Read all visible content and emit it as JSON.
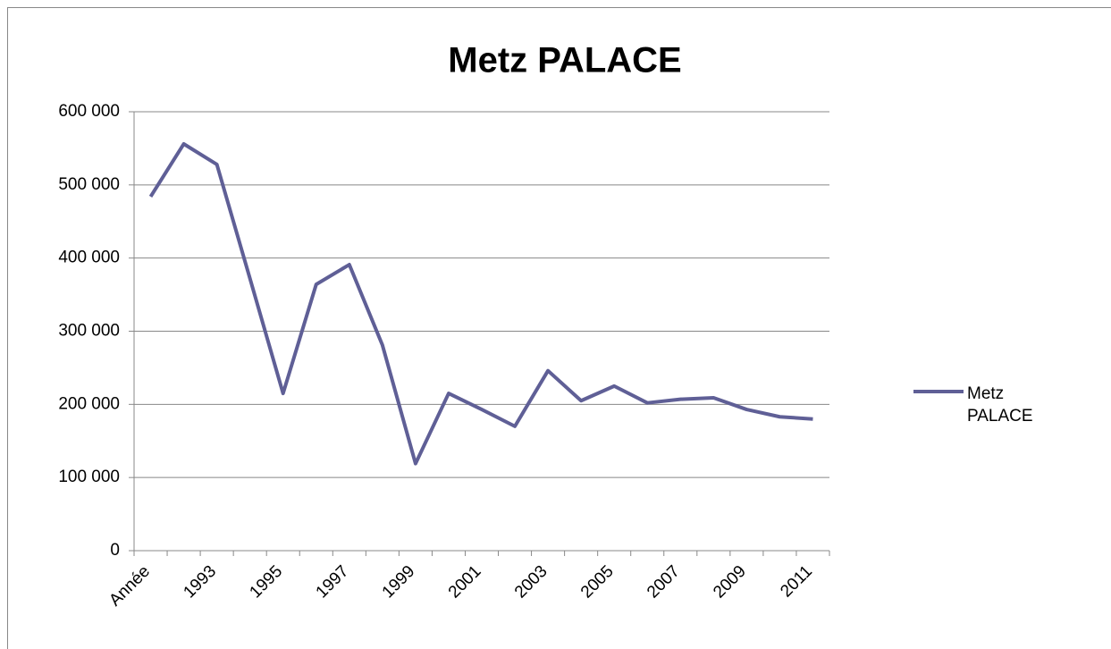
{
  "chart_data": {
    "type": "line",
    "title": "Metz PALACE",
    "categories": [
      "Année",
      null,
      "1993",
      null,
      "1995",
      null,
      "1997",
      null,
      "1999",
      null,
      "2001",
      null,
      "2003",
      null,
      "2005",
      null,
      "2007",
      null,
      "2009",
      null,
      "2011"
    ],
    "series": [
      {
        "name": "Metz PALACE",
        "color": "#5f5f96",
        "values": [
          484000,
          556000,
          528000,
          372000,
          215000,
          364000,
          391000,
          281000,
          119000,
          215000,
          193000,
          170000,
          246000,
          205000,
          225000,
          202000,
          207000,
          209000,
          193000,
          183000,
          180000
        ]
      }
    ],
    "ylim": [
      0,
      600000
    ],
    "yticks": [
      {
        "value": 0,
        "label": "0"
      },
      {
        "value": 100000,
        "label": "100 000"
      },
      {
        "value": 200000,
        "label": "200 000"
      },
      {
        "value": 300000,
        "label": "300 000"
      },
      {
        "value": 400000,
        "label": "400 000"
      },
      {
        "value": 500000,
        "label": "500 000"
      },
      {
        "value": 600000,
        "label": "600 000"
      }
    ],
    "grid": true,
    "legend": "right"
  }
}
